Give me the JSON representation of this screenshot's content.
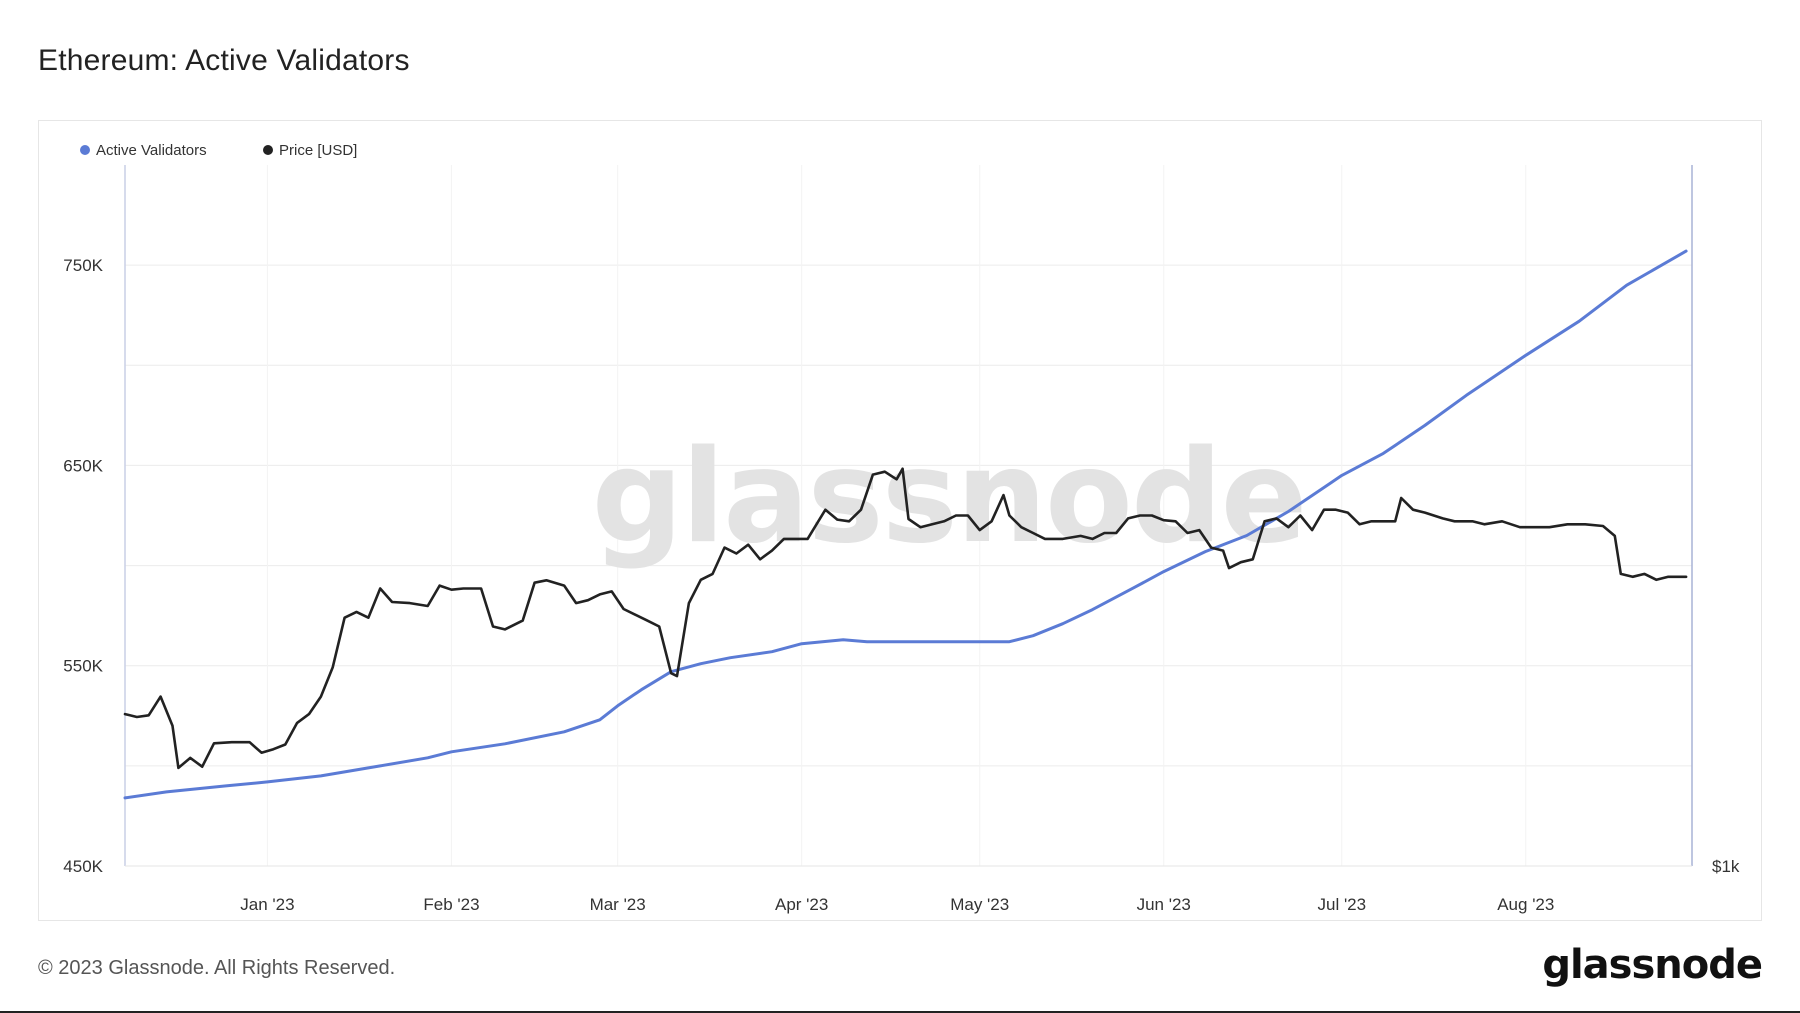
{
  "title": "Ethereum: Active Validators",
  "copyright": "© 2023 Glassnode. All Rights Reserved.",
  "logo": "glassnode",
  "watermark": "glassnode",
  "colors": {
    "validators": "#5b7bd5",
    "price": "#222222",
    "grid": "#ececec",
    "axis": "#c9cfe6"
  },
  "chart_data": {
    "type": "line",
    "title": "Ethereum: Active Validators",
    "legend": [
      "Active Validators",
      "Price [USD]"
    ],
    "legend_position": "top-left",
    "grid": true,
    "x_tick_labels": [
      "Jan '23",
      "Feb '23",
      "Mar '23",
      "Apr '23",
      "May '23",
      "Jun '23",
      "Jul '23",
      "Aug '23"
    ],
    "x_tick_dates": [
      "2023-01-01",
      "2023-02-01",
      "2023-03-01",
      "2023-04-01",
      "2023-05-01",
      "2023-06-01",
      "2023-07-01",
      "2023-08-01"
    ],
    "xlim": [
      "2022-12-08",
      "2023-08-29"
    ],
    "y_left": {
      "ticks": [
        450000,
        550000,
        650000,
        750000
      ],
      "tick_labels": [
        "450K",
        "550K",
        "650K",
        "750K"
      ],
      "ylim": [
        450000,
        800000
      ]
    },
    "y_right": {
      "tick_labels": [
        "$1k"
      ],
      "ticks": [
        1000
      ],
      "ylim": [
        1000,
        2200
      ]
    },
    "series": [
      {
        "name": "Active Validators",
        "axis": "left",
        "points": [
          [
            "2022-12-08",
            484000
          ],
          [
            "2022-12-15",
            487000
          ],
          [
            "2022-12-25",
            490000
          ],
          [
            "2023-01-01",
            492000
          ],
          [
            "2023-01-10",
            495000
          ],
          [
            "2023-01-20",
            500000
          ],
          [
            "2023-01-28",
            504000
          ],
          [
            "2023-02-01",
            507000
          ],
          [
            "2023-02-10",
            511000
          ],
          [
            "2023-02-20",
            517000
          ],
          [
            "2023-02-26",
            523000
          ],
          [
            "2023-03-01",
            530000
          ],
          [
            "2023-03-05",
            538000
          ],
          [
            "2023-03-10",
            547000
          ],
          [
            "2023-03-15",
            551000
          ],
          [
            "2023-03-20",
            554000
          ],
          [
            "2023-03-27",
            557000
          ],
          [
            "2023-04-01",
            561000
          ],
          [
            "2023-04-08",
            563000
          ],
          [
            "2023-04-12",
            562000
          ],
          [
            "2023-04-20",
            562000
          ],
          [
            "2023-05-01",
            562000
          ],
          [
            "2023-05-06",
            562000
          ],
          [
            "2023-05-10",
            565000
          ],
          [
            "2023-05-15",
            571000
          ],
          [
            "2023-05-20",
            578000
          ],
          [
            "2023-05-27",
            589000
          ],
          [
            "2023-06-01",
            597000
          ],
          [
            "2023-06-08",
            607000
          ],
          [
            "2023-06-15",
            615000
          ],
          [
            "2023-06-22",
            627000
          ],
          [
            "2023-06-29",
            641000
          ],
          [
            "2023-07-01",
            645000
          ],
          [
            "2023-07-08",
            656000
          ],
          [
            "2023-07-15",
            670000
          ],
          [
            "2023-07-22",
            685000
          ],
          [
            "2023-08-01",
            705000
          ],
          [
            "2023-08-10",
            722000
          ],
          [
            "2023-08-18",
            740000
          ],
          [
            "2023-08-28",
            757000
          ]
        ]
      },
      {
        "name": "Price [USD]",
        "axis": "right",
        "points": [
          [
            "2022-12-08",
            1260
          ],
          [
            "2022-12-10",
            1255
          ],
          [
            "2022-12-12",
            1258
          ],
          [
            "2022-12-14",
            1290
          ],
          [
            "2022-12-16",
            1240
          ],
          [
            "2022-12-17",
            1168
          ],
          [
            "2022-12-19",
            1185
          ],
          [
            "2022-12-21",
            1170
          ],
          [
            "2022-12-23",
            1210
          ],
          [
            "2022-12-26",
            1212
          ],
          [
            "2022-12-29",
            1212
          ],
          [
            "2022-12-31",
            1194
          ],
          [
            "2023-01-02",
            1200
          ],
          [
            "2023-01-04",
            1208
          ],
          [
            "2023-01-06",
            1245
          ],
          [
            "2023-01-08",
            1260
          ],
          [
            "2023-01-10",
            1290
          ],
          [
            "2023-01-12",
            1340
          ],
          [
            "2023-01-14",
            1425
          ],
          [
            "2023-01-16",
            1435
          ],
          [
            "2023-01-18",
            1425
          ],
          [
            "2023-01-20",
            1475
          ],
          [
            "2023-01-22",
            1452
          ],
          [
            "2023-01-25",
            1450
          ],
          [
            "2023-01-28",
            1445
          ],
          [
            "2023-01-30",
            1480
          ],
          [
            "2023-02-01",
            1473
          ],
          [
            "2023-02-03",
            1475
          ],
          [
            "2023-02-06",
            1475
          ],
          [
            "2023-02-08",
            1410
          ],
          [
            "2023-02-10",
            1405
          ],
          [
            "2023-02-13",
            1420
          ],
          [
            "2023-02-15",
            1485
          ],
          [
            "2023-02-17",
            1489
          ],
          [
            "2023-02-20",
            1480
          ],
          [
            "2023-02-22",
            1450
          ],
          [
            "2023-02-24",
            1455
          ],
          [
            "2023-02-26",
            1465
          ],
          [
            "2023-02-28",
            1470
          ],
          [
            "2023-03-02",
            1440
          ],
          [
            "2023-03-04",
            1430
          ],
          [
            "2023-03-06",
            1420
          ],
          [
            "2023-03-08",
            1410
          ],
          [
            "2023-03-10",
            1330
          ],
          [
            "2023-03-11",
            1325
          ],
          [
            "2023-03-13",
            1450
          ],
          [
            "2023-03-15",
            1490
          ],
          [
            "2023-03-17",
            1500
          ],
          [
            "2023-03-19",
            1545
          ],
          [
            "2023-03-21",
            1535
          ],
          [
            "2023-03-23",
            1550
          ],
          [
            "2023-03-25",
            1525
          ],
          [
            "2023-03-27",
            1540
          ],
          [
            "2023-03-29",
            1560
          ],
          [
            "2023-03-31",
            1560
          ],
          [
            "2023-04-02",
            1560
          ],
          [
            "2023-04-05",
            1610
          ],
          [
            "2023-04-07",
            1593
          ],
          [
            "2023-04-09",
            1590
          ],
          [
            "2023-04-11",
            1610
          ],
          [
            "2023-04-13",
            1670
          ],
          [
            "2023-04-15",
            1675
          ],
          [
            "2023-04-17",
            1662
          ],
          [
            "2023-04-18",
            1680
          ],
          [
            "2023-04-19",
            1594
          ],
          [
            "2023-04-21",
            1580
          ],
          [
            "2023-04-23",
            1585
          ],
          [
            "2023-04-25",
            1590
          ],
          [
            "2023-04-27",
            1600
          ],
          [
            "2023-04-29",
            1600
          ],
          [
            "2023-05-01",
            1575
          ],
          [
            "2023-05-03",
            1590
          ],
          [
            "2023-05-05",
            1635
          ],
          [
            "2023-05-06",
            1600
          ],
          [
            "2023-05-08",
            1580
          ],
          [
            "2023-05-10",
            1570
          ],
          [
            "2023-05-12",
            1560
          ],
          [
            "2023-05-15",
            1560
          ],
          [
            "2023-05-18",
            1565
          ],
          [
            "2023-05-20",
            1560
          ],
          [
            "2023-05-22",
            1570
          ],
          [
            "2023-05-24",
            1570
          ],
          [
            "2023-05-26",
            1595
          ],
          [
            "2023-05-28",
            1600
          ],
          [
            "2023-05-30",
            1600
          ],
          [
            "2023-06-01",
            1592
          ],
          [
            "2023-06-03",
            1590
          ],
          [
            "2023-06-05",
            1570
          ],
          [
            "2023-06-07",
            1575
          ],
          [
            "2023-06-09",
            1545
          ],
          [
            "2023-06-11",
            1540
          ],
          [
            "2023-06-12",
            1510
          ],
          [
            "2023-06-14",
            1520
          ],
          [
            "2023-06-16",
            1525
          ],
          [
            "2023-06-18",
            1590
          ],
          [
            "2023-06-20",
            1595
          ],
          [
            "2023-06-22",
            1580
          ],
          [
            "2023-06-24",
            1600
          ],
          [
            "2023-06-26",
            1575
          ],
          [
            "2023-06-28",
            1610
          ],
          [
            "2023-06-30",
            1610
          ],
          [
            "2023-07-02",
            1605
          ],
          [
            "2023-07-04",
            1585
          ],
          [
            "2023-07-06",
            1590
          ],
          [
            "2023-07-08",
            1590
          ],
          [
            "2023-07-10",
            1590
          ],
          [
            "2023-07-11",
            1630
          ],
          [
            "2023-07-13",
            1610
          ],
          [
            "2023-07-15",
            1605
          ],
          [
            "2023-07-18",
            1595
          ],
          [
            "2023-07-20",
            1590
          ],
          [
            "2023-07-23",
            1590
          ],
          [
            "2023-07-25",
            1585
          ],
          [
            "2023-07-28",
            1590
          ],
          [
            "2023-07-31",
            1580
          ],
          [
            "2023-08-02",
            1580
          ],
          [
            "2023-08-05",
            1580
          ],
          [
            "2023-08-08",
            1585
          ],
          [
            "2023-08-11",
            1585
          ],
          [
            "2023-08-14",
            1582
          ],
          [
            "2023-08-16",
            1565
          ],
          [
            "2023-08-17",
            1500
          ],
          [
            "2023-08-19",
            1495
          ],
          [
            "2023-08-21",
            1500
          ],
          [
            "2023-08-23",
            1490
          ],
          [
            "2023-08-25",
            1495
          ],
          [
            "2023-08-28",
            1495
          ]
        ]
      }
    ]
  }
}
